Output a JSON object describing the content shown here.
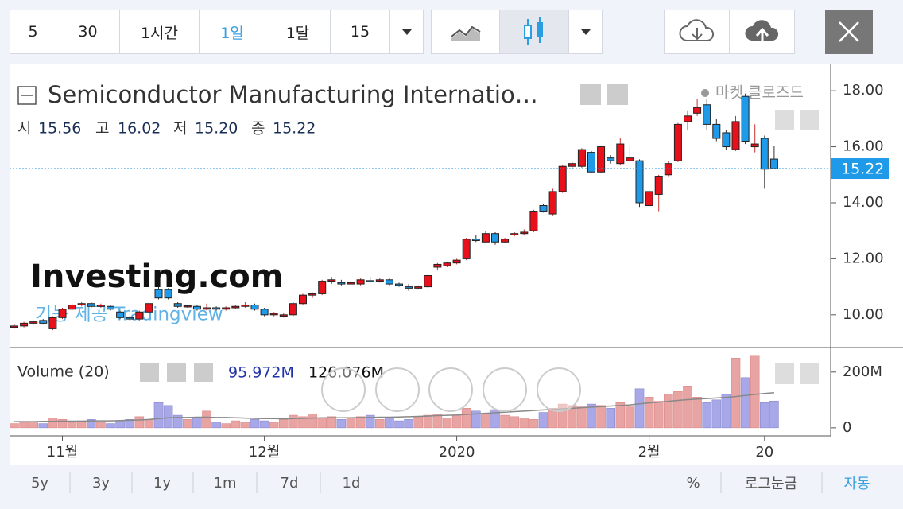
{
  "toolbar": {
    "intervals": [
      "5",
      "30",
      "1시간",
      "1일",
      "1달",
      "15"
    ]
  },
  "chart_data": {
    "type": "candlestick",
    "title": "Semiconductor Manufacturing Internatio…",
    "status": "마켓 클로즈드",
    "ohlc_labels": [
      "시",
      "고",
      "저",
      "종"
    ],
    "ohlc_value_labels": [
      "15.56",
      "16.02",
      "15.20",
      "15.22"
    ],
    "watermark": "Investing.com",
    "credit": "기능 제공 Tradingview",
    "categories": [
      null,
      null,
      null,
      null,
      null,
      "11월",
      null,
      null,
      null,
      null,
      null,
      null,
      null,
      null,
      null,
      null,
      null,
      null,
      null,
      null,
      null,
      null,
      null,
      null,
      null,
      null,
      "12월",
      null,
      null,
      null,
      null,
      null,
      null,
      null,
      null,
      null,
      null,
      null,
      null,
      null,
      null,
      null,
      null,
      null,
      null,
      null,
      "2020",
      null,
      null,
      null,
      null,
      null,
      null,
      null,
      null,
      null,
      null,
      null,
      null,
      null,
      null,
      null,
      null,
      null,
      null,
      null,
      "2월",
      null,
      null,
      null,
      null,
      null,
      null,
      null,
      null,
      null,
      null,
      null,
      "20",
      null
    ],
    "candles": {
      "up_color": "#e8101a",
      "down_color": "#1e9ae8",
      "open": [
        9.55,
        9.6,
        9.7,
        9.8,
        9.5,
        9.9,
        10.2,
        10.35,
        10.4,
        10.3,
        10.3,
        10.1,
        9.9,
        9.85,
        10.1,
        10.9,
        10.9,
        10.4,
        10.28,
        10.3,
        10.2,
        10.25,
        10.2,
        10.25,
        10.3,
        10.35,
        10.2,
        10.0,
        9.95,
        10.0,
        10.4,
        10.7,
        10.75,
        11.2,
        11.15,
        11.1,
        11.1,
        11.22,
        11.2,
        11.25,
        11.1,
        11.0,
        10.95,
        11.0,
        11.7,
        11.75,
        11.85,
        12.0,
        12.7,
        12.6,
        12.9,
        12.6,
        12.85,
        12.9,
        13.0,
        13.9,
        13.6,
        14.4,
        15.3,
        15.3,
        15.8,
        15.1,
        15.6,
        15.4,
        15.5,
        15.5,
        13.9,
        14.3,
        15.0,
        15.5,
        16.9,
        17.2,
        17.5,
        16.8,
        16.5,
        15.9,
        17.8,
        16.0,
        16.3,
        15.56
      ],
      "high": [
        9.65,
        9.75,
        9.8,
        9.85,
        9.95,
        10.25,
        10.4,
        10.45,
        10.45,
        10.4,
        10.35,
        10.15,
        9.95,
        10.15,
        10.45,
        11.0,
        10.95,
        10.45,
        10.35,
        10.35,
        10.4,
        10.3,
        10.3,
        10.35,
        10.45,
        10.4,
        10.25,
        10.1,
        10.05,
        10.45,
        10.75,
        10.8,
        11.25,
        11.35,
        11.25,
        11.2,
        11.3,
        11.35,
        11.3,
        11.3,
        11.15,
        11.1,
        11.05,
        11.45,
        11.85,
        11.9,
        12.0,
        12.75,
        12.85,
        13.0,
        12.95,
        12.75,
        12.95,
        13.05,
        13.75,
        13.95,
        14.5,
        15.35,
        15.45,
        15.95,
        15.85,
        16.05,
        15.7,
        16.3,
        16.0,
        15.55,
        14.45,
        15.0,
        15.5,
        16.85,
        17.3,
        17.7,
        17.7,
        17.0,
        16.6,
        17.1,
        17.9,
        16.8,
        16.4,
        16.02
      ],
      "low": [
        9.5,
        9.55,
        9.65,
        9.65,
        9.45,
        9.85,
        10.15,
        10.3,
        10.25,
        10.25,
        10.15,
        9.85,
        9.8,
        9.8,
        10.05,
        10.55,
        10.55,
        10.25,
        10.25,
        10.15,
        10.15,
        10.15,
        10.15,
        10.2,
        10.25,
        10.15,
        9.95,
        9.95,
        9.9,
        9.95,
        10.35,
        10.6,
        10.7,
        11.1,
        11.05,
        11.05,
        11.05,
        11.15,
        11.15,
        11.05,
        11.0,
        10.85,
        10.9,
        10.95,
        11.6,
        11.7,
        11.8,
        11.95,
        12.6,
        12.55,
        12.5,
        12.55,
        12.8,
        12.85,
        12.95,
        13.65,
        13.55,
        14.35,
        15.2,
        15.25,
        15.05,
        15.05,
        15.4,
        15.35,
        15.45,
        13.85,
        13.85,
        13.7,
        14.95,
        15.45,
        16.6,
        17.1,
        16.6,
        16.2,
        15.9,
        15.85,
        16.1,
        15.8,
        14.5,
        15.2
      ],
      "close": [
        9.6,
        9.7,
        9.75,
        9.7,
        9.9,
        10.2,
        10.35,
        10.4,
        10.3,
        10.35,
        10.2,
        9.9,
        9.85,
        10.1,
        10.4,
        10.6,
        10.6,
        10.3,
        10.32,
        10.2,
        10.25,
        10.2,
        10.25,
        10.3,
        10.35,
        10.2,
        10.0,
        10.05,
        10.0,
        10.4,
        10.7,
        10.75,
        11.2,
        11.25,
        11.1,
        11.15,
        11.25,
        11.18,
        11.25,
        11.1,
        11.05,
        10.95,
        11.0,
        11.4,
        11.8,
        11.85,
        11.95,
        12.7,
        12.65,
        12.9,
        12.6,
        12.7,
        12.9,
        12.95,
        13.7,
        13.7,
        14.4,
        15.3,
        15.4,
        15.9,
        15.1,
        16.0,
        15.5,
        16.1,
        15.6,
        14.0,
        14.4,
        14.95,
        15.4,
        16.8,
        17.1,
        17.4,
        16.8,
        16.3,
        16.0,
        16.9,
        16.2,
        16.1,
        15.2,
        15.22
      ]
    },
    "volume": {
      "name": "Volume (20)",
      "up_color": "#e8a3a3",
      "down_color": "#a8a8e8",
      "ma_color": "#888888",
      "values": [
        15,
        20,
        18,
        15,
        35,
        30,
        20,
        25,
        30,
        20,
        15,
        25,
        30,
        40,
        30,
        90,
        80,
        45,
        30,
        35,
        60,
        20,
        15,
        25,
        20,
        30,
        25,
        20,
        30,
        45,
        40,
        50,
        35,
        40,
        30,
        35,
        40,
        45,
        30,
        35,
        25,
        30,
        40,
        45,
        50,
        35,
        45,
        70,
        60,
        50,
        65,
        45,
        40,
        35,
        30,
        55,
        70,
        85,
        80,
        75,
        85,
        80,
        70,
        90,
        75,
        140,
        110,
        95,
        120,
        130,
        150,
        110,
        90,
        100,
        120,
        250,
        180,
        260,
        90,
        95.972
      ],
      "ma": [
        22,
        22,
        22,
        23,
        23,
        24,
        24,
        24,
        25,
        25,
        25,
        26,
        27,
        28,
        30,
        33,
        36,
        37,
        37,
        38,
        38,
        37,
        37,
        36,
        35,
        34,
        33,
        33,
        32,
        33,
        34,
        35,
        36,
        36,
        36,
        36,
        37,
        37,
        38,
        38,
        39,
        40,
        41,
        42,
        44,
        45,
        46,
        48,
        50,
        52,
        54,
        56,
        58,
        60,
        62,
        64,
        66,
        68,
        70,
        72,
        74,
        76,
        78,
        80,
        82,
        86,
        89,
        92,
        95,
        98,
        101,
        103,
        105,
        107,
        109,
        112,
        116,
        120,
        123,
        126.076
      ],
      "last_labels": [
        "95.972M",
        "126.076M"
      ]
    },
    "ylim": [
      8.83,
      18.97
    ],
    "yticks": [
      {
        "value": 10,
        "label": "10.00"
      },
      {
        "value": 12,
        "label": "12.00"
      },
      {
        "value": 14,
        "label": "14.00"
      },
      {
        "value": 16,
        "label": "16.00"
      },
      {
        "value": 18,
        "label": "18.00"
      }
    ],
    "y2lim": [
      -29,
      288
    ],
    "y2ticks": [
      0,
      {
        "value": 200,
        "label": "200M"
      }
    ]
  },
  "footer": {
    "ranges": [
      "5y",
      "3y",
      "1y",
      "1m",
      "7d",
      "1d"
    ],
    "options": [
      "%",
      "로그눈금",
      "자동"
    ]
  }
}
